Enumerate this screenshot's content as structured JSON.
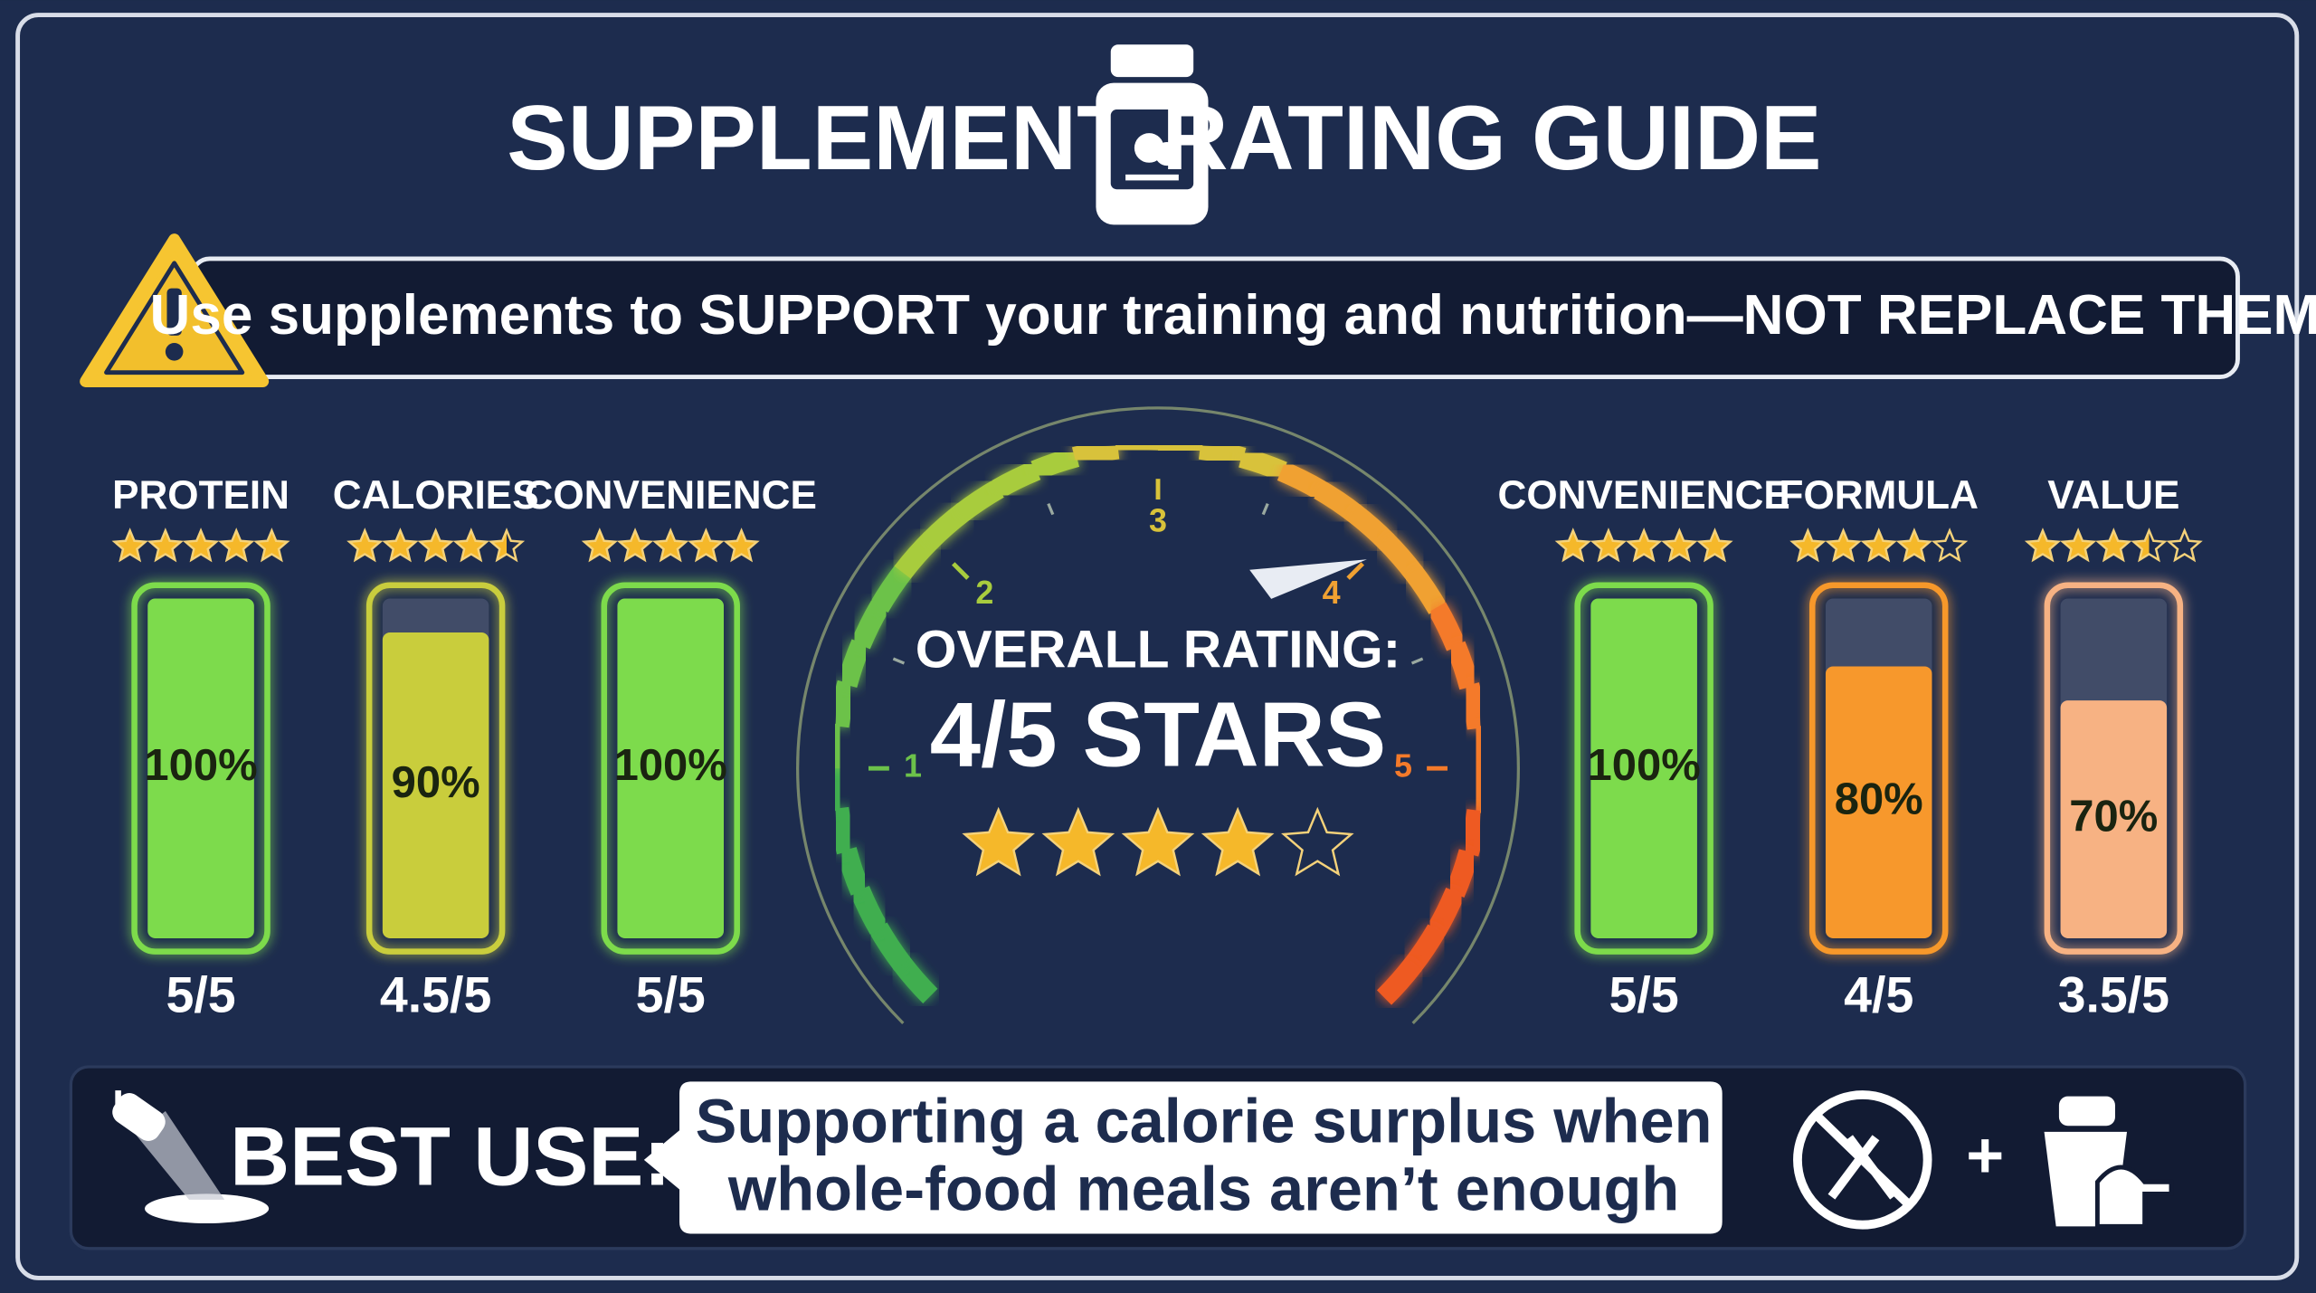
{
  "header": {
    "title_left": "SUPPLEMENT",
    "title_right": "RATING GUIDE"
  },
  "warning": {
    "text": "Use supplements to SUPPORT your training and nutrition—NOT REPLACE THEM"
  },
  "ratings": [
    {
      "label": "PROTEIN",
      "rating": 5,
      "percent": 100,
      "percent_label": "100%",
      "score_label": "5/5",
      "color": "#7ddb4c"
    },
    {
      "label": "CALORIES",
      "rating": 4.5,
      "percent": 90,
      "percent_label": "90%",
      "score_label": "4.5/5",
      "color": "#c9cd3c"
    },
    {
      "label": "CONVENIENCE",
      "rating": 5,
      "percent": 100,
      "percent_label": "100%",
      "score_label": "5/5",
      "color": "#7ddb4c"
    },
    {
      "label": "CONVENIENCE",
      "rating": 5,
      "percent": 100,
      "percent_label": "100%",
      "score_label": "5/5",
      "color": "#7ddb4c"
    },
    {
      "label": "FORMULA",
      "rating": 4,
      "percent": 80,
      "percent_label": "80%",
      "score_label": "4/5",
      "color": "#f7982c"
    },
    {
      "label": "VALUE",
      "rating": 3.5,
      "percent": 70,
      "percent_label": "70%",
      "score_label": "3.5/5",
      "color": "#f7b283"
    }
  ],
  "gauge": {
    "ticks": [
      1,
      2,
      3,
      4,
      5
    ],
    "title": "OVERALL RATING:",
    "value": 4,
    "value_label": "4/5 STARS"
  },
  "best_use": {
    "label": "BEST USE:",
    "lines": [
      "Supporting a calorie surplus when",
      "whole-food meals aren’t enough"
    ],
    "plus": "+"
  }
}
